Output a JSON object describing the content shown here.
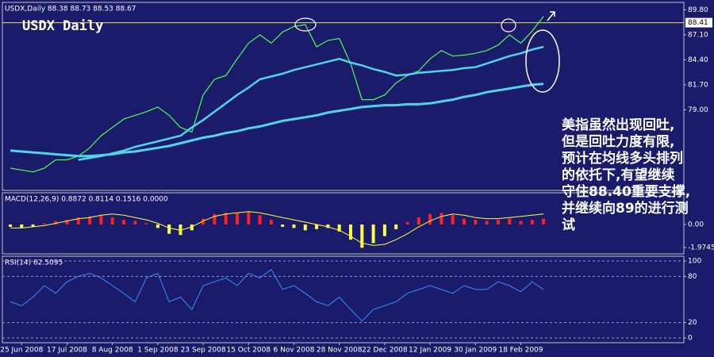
{
  "chart_data": [
    {
      "type": "line",
      "title": "USDX,Daily 88.38 88.73 88.53 88.67",
      "label": "USDX Daily",
      "ylim": [
        70.3,
        90.6
      ],
      "yticks": [
        {
          "value": 89.8,
          "label": "89.80"
        },
        {
          "value": 87.1,
          "label": "87.10"
        },
        {
          "value": 84.4,
          "label": "84.40"
        },
        {
          "value": 81.7,
          "label": "81.70"
        },
        {
          "value": 79.0,
          "label": "79.00"
        }
      ],
      "hline": {
        "value": 88.41,
        "label": "88.41"
      },
      "annotation": [
        "美指虽然出现回吐,",
        "但是回吐力度有限,",
        "预计在均线多头排列",
        "的依托下,有望继续",
        "守住88.40重要支撑,",
        "并继续向89的进行测",
        "试"
      ],
      "series": [
        {
          "color": "#4dff4d",
          "width": 1.2,
          "values": [
            72.7,
            72.5,
            72.3,
            72.7,
            73.6,
            73.6,
            74.0,
            74.9,
            76.2,
            77.1,
            78.0,
            78.4,
            78.8,
            79.3,
            78.4,
            77.1,
            76.6,
            80.6,
            82.3,
            82.7,
            84.5,
            86.2,
            87.1,
            86.2,
            87.4,
            88.0,
            88.2,
            85.8,
            86.5,
            86.7,
            84.0,
            80.1,
            80.1,
            80.6,
            81.9,
            82.7,
            83.2,
            84.5,
            85.4,
            84.8,
            84.9,
            85.1,
            85.4,
            86.0,
            87.1,
            86.2,
            87.5,
            89.1
          ]
        },
        {
          "color": "#4fd4e8",
          "width": 3,
          "values": [
            74.6,
            74.5,
            74.4,
            74.3,
            74.2,
            74.1,
            74.0,
            74.0,
            74.1,
            74.2,
            74.4,
            74.5,
            74.7,
            74.9,
            75.1,
            75.4,
            75.7,
            76.0,
            76.2,
            76.5,
            76.7,
            77.0,
            77.2,
            77.5,
            77.8,
            78.0,
            78.2,
            78.4,
            78.7,
            78.9,
            79.1,
            79.3,
            79.4,
            79.5,
            79.5,
            79.6,
            79.6,
            79.7,
            79.9,
            80.1,
            80.4,
            80.6,
            80.9,
            81.1,
            81.3,
            81.5,
            81.7,
            81.8
          ]
        },
        {
          "color": "#4fd4e8",
          "width": 2.5,
          "values": [
            null,
            null,
            null,
            null,
            null,
            null,
            73.6,
            73.8,
            74.0,
            74.3,
            74.6,
            75.0,
            75.3,
            75.6,
            75.9,
            76.2,
            77.1,
            77.9,
            78.8,
            79.7,
            80.6,
            81.4,
            82.3,
            82.6,
            82.9,
            83.3,
            83.6,
            83.9,
            84.2,
            84.5,
            84.1,
            83.8,
            83.4,
            83.1,
            82.7,
            82.8,
            83.0,
            83.1,
            83.2,
            83.3,
            83.5,
            83.6,
            84.0,
            84.4,
            84.8,
            85.1,
            85.5,
            85.8
          ]
        }
      ]
    },
    {
      "type": "bar",
      "title": "MACD(12,26,9) 0.8872 0.8114 0.1516 0.0000",
      "ylim": [
        -2.52,
        2.72
      ],
      "yticks": [
        {
          "value": 0,
          "label": "0.00"
        },
        -1.9745
      ],
      "up_color": "#ff2020",
      "down_color": "#ffff40",
      "values": [
        -0.2,
        -0.3,
        -0.2,
        0.1,
        0.3,
        0.4,
        0.6,
        0.7,
        0.8,
        0.6,
        0.4,
        0.3,
        0.1,
        -0.3,
        -0.8,
        -0.9,
        -0.5,
        0.5,
        0.9,
        1.0,
        1.0,
        1.1,
        0.8,
        0.4,
        -0.2,
        -0.3,
        -0.5,
        -0.4,
        -0.3,
        -0.6,
        -1.3,
        -2.0,
        -1.6,
        -1.0,
        -0.4,
        0.2,
        0.6,
        0.9,
        1.0,
        0.8,
        0.5,
        0.4,
        0.3,
        0.4,
        0.5,
        0.3,
        0.4,
        0.5
      ],
      "series": [
        {
          "color": "#ffff40",
          "width": 1,
          "values": [
            -0.3,
            -0.3,
            -0.2,
            -0.1,
            0.1,
            0.3,
            0.5,
            0.6,
            0.8,
            0.9,
            0.8,
            0.6,
            0.4,
            0.1,
            -0.3,
            -0.5,
            -0.2,
            0.3,
            0.7,
            0.9,
            1.0,
            1.1,
            1.0,
            0.8,
            0.6,
            0.4,
            0.2,
            0.0,
            -0.2,
            -0.5,
            -1.0,
            -1.6,
            -1.8,
            -1.7,
            -1.3,
            -0.8,
            -0.2,
            0.3,
            0.7,
            0.9,
            0.8,
            0.6,
            0.5,
            0.5,
            0.6,
            0.7,
            0.8,
            0.9
          ]
        }
      ]
    },
    {
      "type": "line",
      "title": "RSI(14) 62.5095",
      "ylim": [
        -6.2,
        106.2
      ],
      "yticks": [
        100,
        80,
        20,
        0
      ],
      "grid": true,
      "categories": [
        null,
        "25 Jun 2008",
        null,
        null,
        null,
        "17 Jul 2008",
        null,
        null,
        null,
        "8 Aug 2008",
        null,
        null,
        null,
        "1 Sep 2008",
        null,
        null,
        null,
        "23 Sep 2008",
        null,
        null,
        null,
        "15 Oct 2008",
        null,
        null,
        null,
        "6 Nov 2008",
        null,
        null,
        null,
        "28 Nov 2008",
        null,
        null,
        null,
        "22 Dec 2008",
        null,
        null,
        null,
        "12 Jan 2009",
        null,
        null,
        null,
        "30 Jan 2009",
        null,
        null,
        null,
        "18 Feb 2009",
        null,
        null
      ],
      "series": [
        {
          "color": "#3c8cff",
          "width": 1,
          "values": [
            47,
            42,
            53,
            68,
            58,
            73,
            80,
            84,
            78,
            68,
            58,
            47,
            78,
            84,
            47,
            53,
            37,
            68,
            73,
            78,
            68,
            84,
            78,
            89,
            63,
            68,
            58,
            47,
            42,
            53,
            37,
            22,
            37,
            42,
            47,
            58,
            63,
            68,
            63,
            58,
            68,
            63,
            63,
            73,
            68,
            60,
            73,
            63
          ]
        }
      ]
    }
  ]
}
